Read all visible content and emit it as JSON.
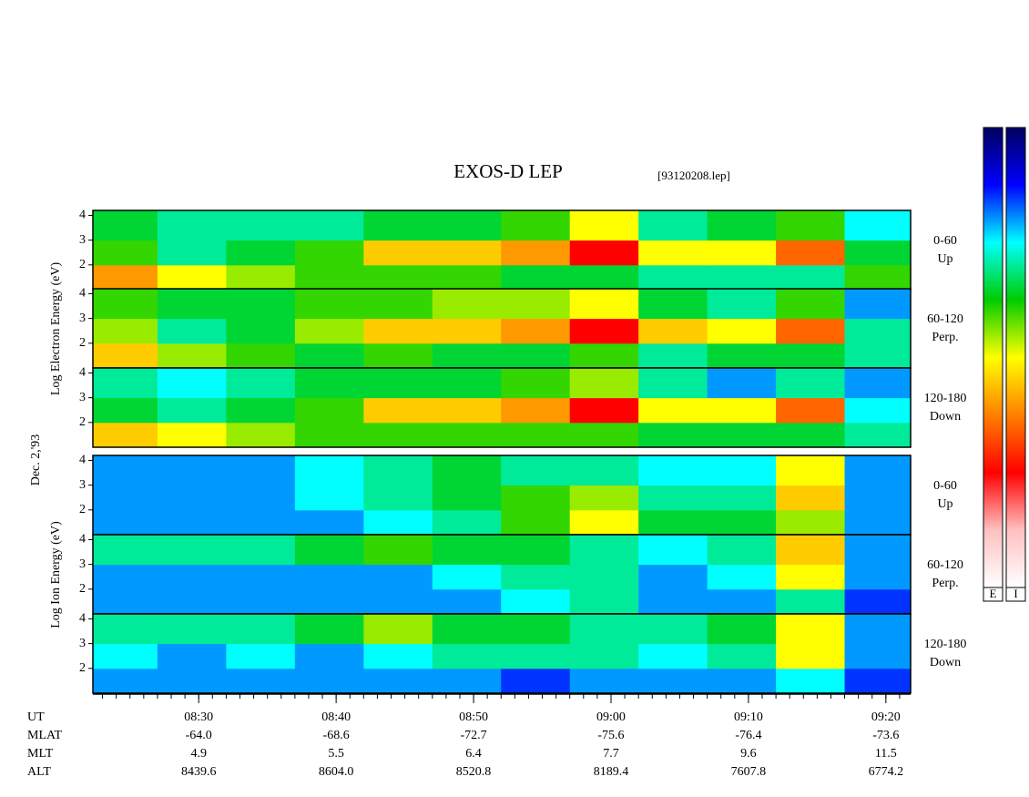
{
  "header": {
    "title": "EXOS-D LEP",
    "file": "[93120208.lep]",
    "date": "Dec. 2,'93"
  },
  "groups": [
    {
      "ylabel": "Log Electron Energy (eV)"
    },
    {
      "ylabel": "Log Ion Energy (eV)"
    }
  ],
  "colorscale": [
    "#000060",
    "#0000ff",
    "#00ffff",
    "#00cc00",
    "#ffff00",
    "#ff8000",
    "#ff0000",
    "#ffc0c0",
    "#ffffff"
  ],
  "colorbars": [
    "E",
    "I"
  ],
  "time_axis": {
    "xlim": [
      502.3,
      561.8
    ],
    "xticks": [
      {
        "value": 510,
        "label": "08:30"
      },
      {
        "value": 520,
        "label": "08:40"
      },
      {
        "value": 530,
        "label": "08:50"
      },
      {
        "value": 540,
        "label": "09:00"
      },
      {
        "value": 550,
        "label": "09:10"
      },
      {
        "value": 560,
        "label": "09:20"
      }
    ],
    "minor_tick_step": 1,
    "bins": [
      502.3,
      507,
      512,
      517,
      522,
      527,
      532,
      537,
      542,
      547,
      552,
      557,
      561.8
    ]
  },
  "chart_data": [
    {
      "type": "heatmap",
      "direction": "0-60",
      "direction_label": "Up",
      "ylim": [
        1,
        4.2
      ],
      "yticks": [
        2,
        3,
        4
      ],
      "y_bins": [
        1,
        2,
        3,
        4.2
      ],
      "values": [
        [
          0.6,
          0.5,
          0.45,
          0.4,
          0.4,
          0.4,
          0.35,
          0.35,
          0.3,
          0.3,
          0.3,
          0.4
        ],
        [
          0.4,
          0.3,
          0.35,
          0.4,
          0.55,
          0.55,
          0.6,
          0.75,
          0.5,
          0.5,
          0.65,
          0.35
        ],
        [
          0.35,
          0.3,
          0.3,
          0.3,
          0.35,
          0.35,
          0.4,
          0.5,
          0.3,
          0.35,
          0.4,
          0.25
        ]
      ]
    },
    {
      "type": "heatmap",
      "direction": "60-120",
      "direction_label": "Perp.",
      "ylim": [
        1,
        4.2
      ],
      "yticks": [
        2,
        3,
        4
      ],
      "y_bins": [
        1,
        2,
        3,
        4.2
      ],
      "values": [
        [
          0.55,
          0.45,
          0.4,
          0.35,
          0.4,
          0.35,
          0.35,
          0.4,
          0.3,
          0.35,
          0.35,
          0.3
        ],
        [
          0.45,
          0.3,
          0.35,
          0.45,
          0.55,
          0.55,
          0.6,
          0.75,
          0.55,
          0.5,
          0.65,
          0.3
        ],
        [
          0.4,
          0.35,
          0.35,
          0.4,
          0.4,
          0.45,
          0.45,
          0.5,
          0.35,
          0.3,
          0.4,
          0.2
        ]
      ]
    },
    {
      "type": "heatmap",
      "direction": "120-180",
      "direction_label": "Down",
      "ylim": [
        1,
        4.2
      ],
      "yticks": [
        2,
        3,
        4
      ],
      "y_bins": [
        1,
        2,
        3,
        4.2
      ],
      "values": [
        [
          0.55,
          0.5,
          0.45,
          0.4,
          0.4,
          0.4,
          0.4,
          0.4,
          0.35,
          0.35,
          0.35,
          0.3
        ],
        [
          0.35,
          0.3,
          0.35,
          0.4,
          0.55,
          0.55,
          0.6,
          0.75,
          0.5,
          0.5,
          0.65,
          0.25
        ],
        [
          0.3,
          0.25,
          0.3,
          0.35,
          0.35,
          0.35,
          0.4,
          0.45,
          0.3,
          0.2,
          0.3,
          0.2
        ]
      ]
    },
    {
      "type": "heatmap",
      "direction": "0-60",
      "direction_label": "Up",
      "ylim": [
        1,
        4.2
      ],
      "yticks": [
        2,
        3,
        4
      ],
      "y_bins": [
        1,
        2,
        3,
        4.2
      ],
      "values": [
        [
          0.2,
          0.2,
          0.2,
          0.2,
          0.25,
          0.3,
          0.4,
          0.5,
          0.35,
          0.35,
          0.45,
          0.2
        ],
        [
          0.2,
          0.2,
          0.2,
          0.25,
          0.3,
          0.35,
          0.4,
          0.45,
          0.3,
          0.3,
          0.55,
          0.2
        ],
        [
          0.2,
          0.2,
          0.2,
          0.25,
          0.3,
          0.35,
          0.3,
          0.3,
          0.25,
          0.25,
          0.5,
          0.2
        ]
      ]
    },
    {
      "type": "heatmap",
      "direction": "60-120",
      "direction_label": "Perp.",
      "ylim": [
        1,
        4.2
      ],
      "yticks": [
        2,
        3,
        4
      ],
      "y_bins": [
        1,
        2,
        3,
        4.2
      ],
      "values": [
        [
          0.2,
          0.2,
          0.2,
          0.2,
          0.2,
          0.2,
          0.25,
          0.3,
          0.2,
          0.2,
          0.3,
          0.15
        ],
        [
          0.2,
          0.2,
          0.2,
          0.2,
          0.2,
          0.25,
          0.3,
          0.3,
          0.2,
          0.25,
          0.5,
          0.2
        ],
        [
          0.3,
          0.3,
          0.3,
          0.35,
          0.4,
          0.35,
          0.35,
          0.3,
          0.25,
          0.3,
          0.55,
          0.2
        ]
      ]
    },
    {
      "type": "heatmap",
      "direction": "120-180",
      "direction_label": "Down",
      "ylim": [
        1,
        4.2
      ],
      "yticks": [
        2,
        3,
        4
      ],
      "y_bins": [
        1,
        2,
        3,
        4.2
      ],
      "values": [
        [
          0.2,
          0.2,
          0.2,
          0.2,
          0.2,
          0.2,
          0.15,
          0.2,
          0.2,
          0.2,
          0.25,
          0.15
        ],
        [
          0.25,
          0.2,
          0.25,
          0.2,
          0.25,
          0.3,
          0.3,
          0.3,
          0.25,
          0.3,
          0.5,
          0.2
        ],
        [
          0.3,
          0.3,
          0.3,
          0.35,
          0.45,
          0.35,
          0.35,
          0.3,
          0.3,
          0.35,
          0.5,
          0.2
        ]
      ]
    }
  ],
  "ephemeris": {
    "ut_label": "UT",
    "rows": [
      {
        "label": "MLAT",
        "values": [
          "-64.0",
          "-68.6",
          "-72.7",
          "-75.6",
          "-76.4",
          "-73.6"
        ]
      },
      {
        "label": "MLT",
        "values": [
          "4.9",
          "5.5",
          "6.4",
          "7.7",
          "9.6",
          "11.5"
        ]
      },
      {
        "label": "ALT",
        "values": [
          "8439.6",
          "8604.0",
          "8520.8",
          "8189.4",
          "7607.8",
          "6774.2"
        ]
      }
    ]
  }
}
